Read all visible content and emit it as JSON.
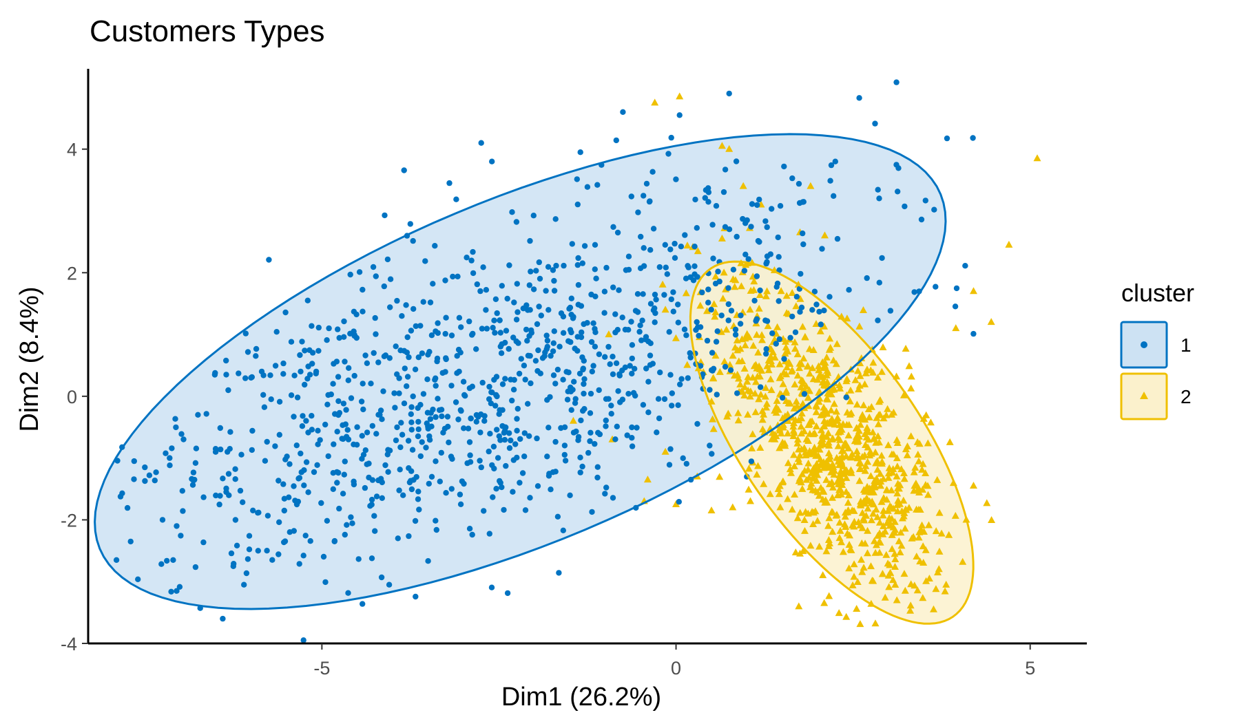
{
  "chart_data": {
    "type": "scatter",
    "title": "Customers Types",
    "xlabel": "Dim1 (26.2%)",
    "ylabel": "Dim2 (8.4%)",
    "xlim": [
      -8.3,
      5.8
    ],
    "ylim": [
      -4.0,
      5.3
    ],
    "x_ticks": [
      -5,
      0,
      5
    ],
    "x_tick_labels": [
      "-5",
      "0",
      "5"
    ],
    "y_ticks": [
      -4,
      -2,
      0,
      2,
      4
    ],
    "y_tick_labels": [
      "-4",
      "-2",
      "0",
      "2",
      "4"
    ],
    "grid": false,
    "legend": {
      "title": "cluster",
      "placement": "right"
    },
    "series": [
      {
        "name": "1",
        "marker": "circle",
        "color": "#0073C2",
        "fill": "#CDE2F3",
        "ellipse": {
          "center": [
            -2.2,
            0.4
          ],
          "semi_axes": [
            6.6,
            2.7
          ],
          "angle_deg": 27
        },
        "generated_point_count": 1040,
        "points": [
          [
            0.75,
            4.9
          ],
          [
            -0.75,
            4.6
          ],
          [
            0.05,
            4.55
          ],
          [
            -2.75,
            4.1
          ],
          [
            -5.2,
            1.55
          ],
          [
            -6.35,
            0.35
          ],
          [
            -6.0,
            0.3
          ],
          [
            -7.5,
            -1.15
          ],
          [
            -7.65,
            -1.05
          ],
          [
            -7.15,
            -1.0
          ],
          [
            -6.75,
            -0.3
          ],
          [
            -6.5,
            -0.85
          ],
          [
            -6.8,
            -1.35
          ],
          [
            -7.7,
            -2.35
          ],
          [
            -7.05,
            -2.1
          ],
          [
            -7.25,
            -2.0
          ],
          [
            -6.35,
            -1.55
          ],
          [
            -7.1,
            -2.65
          ],
          [
            -7.9,
            -2.65
          ],
          [
            -7.05,
            -3.15
          ],
          [
            -6.25,
            -2.75
          ],
          [
            -6.1,
            -3.05
          ],
          [
            -6.4,
            -3.6
          ],
          [
            -4.9,
            1.1
          ],
          [
            -4.55,
            1.05
          ],
          [
            -3.2,
            3.45
          ],
          [
            -2.6,
            3.8
          ],
          [
            -1.35,
            3.95
          ],
          [
            -5.3,
            0.4
          ],
          [
            -5.85,
            0.4
          ],
          [
            -6.3,
            -0.85
          ],
          [
            -6.5,
            -0.9
          ],
          [
            -5.9,
            -2.5
          ],
          [
            -4.05,
            -3.05
          ]
        ]
      },
      {
        "name": "2",
        "marker": "triangle",
        "color": "#EFC000",
        "fill": "#FBF1CC",
        "ellipse": {
          "center": [
            2.2,
            -0.75
          ],
          "semi_axes": [
            3.3,
            1.3
          ],
          "angle_deg": -60
        },
        "generated_point_count": 900,
        "points": [
          [
            0.05,
            4.85
          ],
          [
            -0.3,
            4.75
          ],
          [
            0.65,
            4.05
          ],
          [
            0.75,
            4.0
          ],
          [
            1.9,
            3.4
          ],
          [
            1.75,
            2.65
          ],
          [
            2.1,
            2.6
          ],
          [
            5.1,
            3.85
          ],
          [
            4.7,
            2.45
          ],
          [
            4.2,
            1.7
          ],
          [
            4.45,
            1.2
          ],
          [
            3.95,
            1.1
          ],
          [
            4.2,
            -1.45
          ],
          [
            -0.45,
            -1.7
          ],
          [
            0.0,
            -1.75
          ],
          [
            0.5,
            -1.85
          ],
          [
            0.8,
            -1.8
          ],
          [
            1.05,
            -1.7
          ],
          [
            1.75,
            -2.55
          ],
          [
            0.3,
            -1.3
          ],
          [
            -0.15,
            -0.9
          ],
          [
            -0.4,
            -1.35
          ],
          [
            -0.9,
            -0.7
          ],
          [
            -1.45,
            -0.4
          ],
          [
            -0.95,
            1.0
          ],
          [
            -0.15,
            1.4
          ],
          [
            0.35,
            0.55
          ],
          [
            0.95,
            3.4
          ],
          [
            1.2,
            3.1
          ],
          [
            0.65,
            2.55
          ]
        ]
      }
    ]
  }
}
